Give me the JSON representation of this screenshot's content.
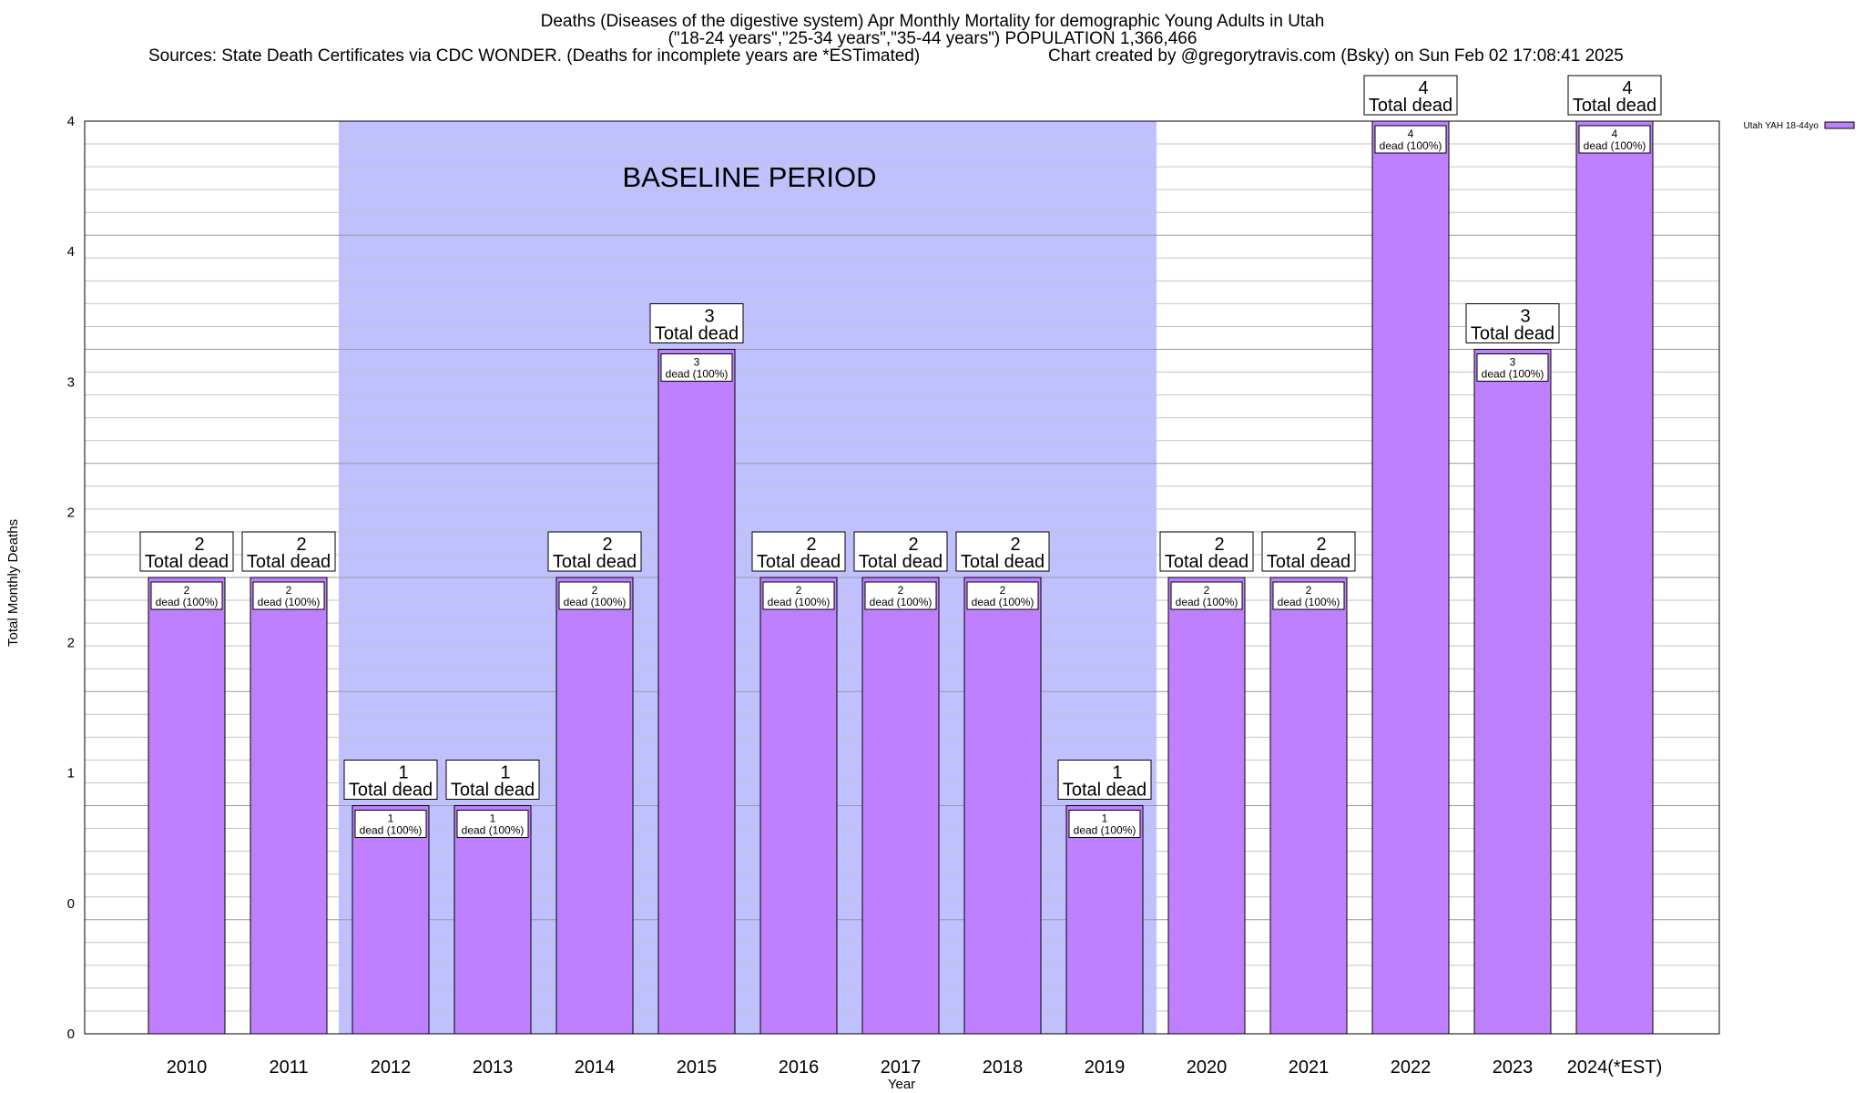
{
  "title_lines": [
    "Deaths (Diseases of the digestive system) Apr Monthly Mortality for demographic Young Adults in Utah",
    "(\"18-24 years\",\"25-34 years\",\"35-44 years\") POPULATION 1,366,466"
  ],
  "sources_text": "Sources: State Death Certificates via CDC WONDER. (Deaths for incomplete years are *ESTimated)",
  "credit_text": "Chart created by @gregorytravis.com (Bsky) on Sun Feb 02 17:08:41 2025",
  "chart_data": {
    "type": "bar",
    "categories": [
      "2010",
      "2011",
      "2012",
      "2013",
      "2014",
      "2015",
      "2016",
      "2017",
      "2018",
      "2019",
      "2020",
      "2021",
      "2022",
      "2023",
      "2024(*EST)"
    ],
    "series": [
      {
        "name": "Utah YAH 18-44yo",
        "values": [
          2,
          2,
          1,
          1,
          2,
          3,
          2,
          2,
          2,
          1,
          2,
          2,
          4,
          3,
          4
        ]
      }
    ],
    "xlabel": "Year",
    "ylabel": "Total Monthly Deaths",
    "ylim": [
      0,
      4
    ],
    "y_tick_labels": [
      "0",
      "0",
      "1",
      "2",
      "2",
      "3",
      "4",
      "4"
    ],
    "grid": true,
    "legend_position": "top-right",
    "top_label_suffix": "Total dead",
    "inner_label_suffix": "dead (100%)",
    "shaded_region": {
      "label": "BASELINE PERIOD",
      "from_category": "2012",
      "to_category": "2019"
    },
    "colors": {
      "bar": "#bf80ff",
      "shade": "#c0c0ff"
    }
  }
}
